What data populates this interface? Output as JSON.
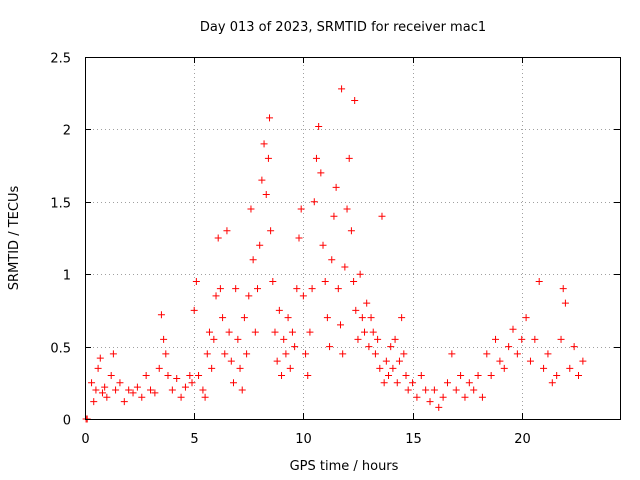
{
  "chart_data": {
    "type": "scatter",
    "title": "Day 013 of 2023, SRMTID for receiver mac1",
    "xlabel": "GPS time / hours",
    "ylabel": "SRMTID / TECUs",
    "xlim": [
      0,
      24.5
    ],
    "ylim": [
      0,
      2.5
    ],
    "grid": true,
    "legend": "none",
    "marker": "plus",
    "color": "#ff0000",
    "x_ticks": [
      0,
      5,
      10,
      15,
      20
    ],
    "x_tick_labels": [
      "0",
      "5",
      "10",
      "15",
      "20"
    ],
    "y_ticks": [
      0,
      0.5,
      1,
      1.5,
      2,
      2.5
    ],
    "y_tick_labels": [
      "0",
      "0.5",
      "1",
      "1.5",
      "2",
      "2.5"
    ],
    "series": [
      {
        "name": "SRMTID",
        "points": [
          [
            0.05,
            0.0
          ],
          [
            0.1,
            0.0
          ],
          [
            0.3,
            0.25
          ],
          [
            0.4,
            0.12
          ],
          [
            0.5,
            0.2
          ],
          [
            0.6,
            0.35
          ],
          [
            0.7,
            0.42
          ],
          [
            0.8,
            0.18
          ],
          [
            0.9,
            0.22
          ],
          [
            1.0,
            0.15
          ],
          [
            1.2,
            0.3
          ],
          [
            1.3,
            0.45
          ],
          [
            1.4,
            0.2
          ],
          [
            1.6,
            0.25
          ],
          [
            1.8,
            0.12
          ],
          [
            2.0,
            0.2
          ],
          [
            2.2,
            0.18
          ],
          [
            2.4,
            0.22
          ],
          [
            2.6,
            0.15
          ],
          [
            2.8,
            0.3
          ],
          [
            3.0,
            0.2
          ],
          [
            3.2,
            0.18
          ],
          [
            3.4,
            0.35
          ],
          [
            3.5,
            0.72
          ],
          [
            3.6,
            0.55
          ],
          [
            3.7,
            0.45
          ],
          [
            3.8,
            0.3
          ],
          [
            4.0,
            0.2
          ],
          [
            4.2,
            0.28
          ],
          [
            4.4,
            0.15
          ],
          [
            4.6,
            0.22
          ],
          [
            4.8,
            0.3
          ],
          [
            4.9,
            0.25
          ],
          [
            5.0,
            0.75
          ],
          [
            5.1,
            0.95
          ],
          [
            5.2,
            0.3
          ],
          [
            5.4,
            0.2
          ],
          [
            5.5,
            0.15
          ],
          [
            5.6,
            0.45
          ],
          [
            5.7,
            0.6
          ],
          [
            5.8,
            0.35
          ],
          [
            5.9,
            0.55
          ],
          [
            6.0,
            0.85
          ],
          [
            6.1,
            1.25
          ],
          [
            6.2,
            0.9
          ],
          [
            6.3,
            0.7
          ],
          [
            6.4,
            0.45
          ],
          [
            6.5,
            1.3
          ],
          [
            6.6,
            0.6
          ],
          [
            6.7,
            0.4
          ],
          [
            6.8,
            0.25
          ],
          [
            6.9,
            0.9
          ],
          [
            7.0,
            0.55
          ],
          [
            7.1,
            0.35
          ],
          [
            7.2,
            0.2
          ],
          [
            7.3,
            0.7
          ],
          [
            7.4,
            0.45
          ],
          [
            7.5,
            0.85
          ],
          [
            7.6,
            1.45
          ],
          [
            7.7,
            1.1
          ],
          [
            7.8,
            0.6
          ],
          [
            7.9,
            0.9
          ],
          [
            8.0,
            1.2
          ],
          [
            8.1,
            1.65
          ],
          [
            8.2,
            1.9
          ],
          [
            8.3,
            1.55
          ],
          [
            8.4,
            1.8
          ],
          [
            8.45,
            2.08
          ],
          [
            8.5,
            1.3
          ],
          [
            8.6,
            0.95
          ],
          [
            8.7,
            0.6
          ],
          [
            8.8,
            0.4
          ],
          [
            8.9,
            0.75
          ],
          [
            9.0,
            0.3
          ],
          [
            9.1,
            0.55
          ],
          [
            9.2,
            0.45
          ],
          [
            9.3,
            0.7
          ],
          [
            9.4,
            0.35
          ],
          [
            9.5,
            0.6
          ],
          [
            9.6,
            0.5
          ],
          [
            9.7,
            0.9
          ],
          [
            9.8,
            1.25
          ],
          [
            9.9,
            1.45
          ],
          [
            10.0,
            0.85
          ],
          [
            10.1,
            0.45
          ],
          [
            10.2,
            0.3
          ],
          [
            10.3,
            0.6
          ],
          [
            10.4,
            0.9
          ],
          [
            10.5,
            1.5
          ],
          [
            10.6,
            1.8
          ],
          [
            10.7,
            2.02
          ],
          [
            10.8,
            1.7
          ],
          [
            10.9,
            1.2
          ],
          [
            11.0,
            0.95
          ],
          [
            11.1,
            0.7
          ],
          [
            11.2,
            0.5
          ],
          [
            11.3,
            1.1
          ],
          [
            11.4,
            1.4
          ],
          [
            11.5,
            1.6
          ],
          [
            11.6,
            0.9
          ],
          [
            11.7,
            0.65
          ],
          [
            11.75,
            2.28
          ],
          [
            11.8,
            0.45
          ],
          [
            11.9,
            1.05
          ],
          [
            12.0,
            1.45
          ],
          [
            12.1,
            1.8
          ],
          [
            12.2,
            1.3
          ],
          [
            12.3,
            0.95
          ],
          [
            12.35,
            2.2
          ],
          [
            12.4,
            0.75
          ],
          [
            12.5,
            0.55
          ],
          [
            12.6,
            1.0
          ],
          [
            12.7,
            0.7
          ],
          [
            12.8,
            0.6
          ],
          [
            12.9,
            0.8
          ],
          [
            13.0,
            0.5
          ],
          [
            13.1,
            0.7
          ],
          [
            13.2,
            0.6
          ],
          [
            13.3,
            0.45
          ],
          [
            13.4,
            0.55
          ],
          [
            13.5,
            0.35
          ],
          [
            13.6,
            1.4
          ],
          [
            13.7,
            0.25
          ],
          [
            13.8,
            0.4
          ],
          [
            13.9,
            0.3
          ],
          [
            14.0,
            0.5
          ],
          [
            14.1,
            0.35
          ],
          [
            14.2,
            0.55
          ],
          [
            14.3,
            0.25
          ],
          [
            14.4,
            0.4
          ],
          [
            14.5,
            0.7
          ],
          [
            14.6,
            0.45
          ],
          [
            14.7,
            0.3
          ],
          [
            14.8,
            0.2
          ],
          [
            15.0,
            0.25
          ],
          [
            15.2,
            0.15
          ],
          [
            15.4,
            0.3
          ],
          [
            15.6,
            0.2
          ],
          [
            15.8,
            0.12
          ],
          [
            16.0,
            0.2
          ],
          [
            16.2,
            0.08
          ],
          [
            16.4,
            0.15
          ],
          [
            16.6,
            0.25
          ],
          [
            16.8,
            0.45
          ],
          [
            17.0,
            0.2
          ],
          [
            17.2,
            0.3
          ],
          [
            17.4,
            0.15
          ],
          [
            17.6,
            0.25
          ],
          [
            17.8,
            0.2
          ],
          [
            18.0,
            0.3
          ],
          [
            18.2,
            0.15
          ],
          [
            18.4,
            0.45
          ],
          [
            18.6,
            0.3
          ],
          [
            18.8,
            0.55
          ],
          [
            19.0,
            0.4
          ],
          [
            19.2,
            0.35
          ],
          [
            19.4,
            0.5
          ],
          [
            19.6,
            0.62
          ],
          [
            19.8,
            0.45
          ],
          [
            20.0,
            0.55
          ],
          [
            20.2,
            0.7
          ],
          [
            20.4,
            0.4
          ],
          [
            20.6,
            0.55
          ],
          [
            20.8,
            0.95
          ],
          [
            21.0,
            0.35
          ],
          [
            21.2,
            0.45
          ],
          [
            21.4,
            0.25
          ],
          [
            21.6,
            0.3
          ],
          [
            21.8,
            0.55
          ],
          [
            21.9,
            0.9
          ],
          [
            22.0,
            0.8
          ],
          [
            22.2,
            0.35
          ],
          [
            22.4,
            0.5
          ],
          [
            22.6,
            0.3
          ],
          [
            22.8,
            0.4
          ]
        ]
      }
    ]
  }
}
